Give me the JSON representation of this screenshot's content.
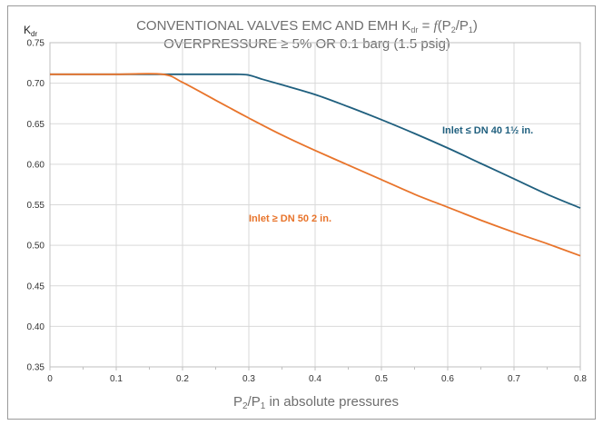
{
  "chart_data": {
    "type": "line",
    "title_line1_parts": [
      "CONVENTIONAL VALVES EMC AND EMH K",
      "dr",
      " = ",
      "f",
      "(P",
      "2",
      "/P",
      "1",
      ")"
    ],
    "title_line2": "OVERPRESSURE ≥ 5% OR 0.1 barg (1.5 psig)",
    "ylabel_main": "K",
    "ylabel_sub": "dr",
    "xlabel_parts": [
      "P",
      "2",
      "/P",
      "1",
      " in absolute pressures"
    ],
    "xlim": [
      0,
      0.8
    ],
    "ylim": [
      0.35,
      0.75
    ],
    "x_ticks": [
      "0",
      "0.1",
      "0.2",
      "0.3",
      "0.4",
      "0.5",
      "0.6",
      "0.7",
      "0.8"
    ],
    "y_ticks": [
      "0.35",
      "0.40",
      "0.45",
      "0.50",
      "0.55",
      "0.60",
      "0.65",
      "0.70",
      "0.75"
    ],
    "grid": true,
    "series": [
      {
        "name": "Inlet ≤ DN 40 1½ in.",
        "color": "#1f5f7e",
        "points": [
          [
            0,
            0.711
          ],
          [
            0.1,
            0.711
          ],
          [
            0.2,
            0.711
          ],
          [
            0.28,
            0.711
          ],
          [
            0.3,
            0.71
          ],
          [
            0.32,
            0.705
          ],
          [
            0.35,
            0.698
          ],
          [
            0.4,
            0.686
          ],
          [
            0.45,
            0.671
          ],
          [
            0.5,
            0.655
          ],
          [
            0.55,
            0.638
          ],
          [
            0.6,
            0.62
          ],
          [
            0.65,
            0.601
          ],
          [
            0.7,
            0.582
          ],
          [
            0.75,
            0.563
          ],
          [
            0.8,
            0.546
          ]
        ]
      },
      {
        "name": "Inlet ≥ DN 50 2 in.",
        "color": "#e8742b",
        "points": [
          [
            0,
            0.711
          ],
          [
            0.1,
            0.711
          ],
          [
            0.17,
            0.711
          ],
          [
            0.2,
            0.701
          ],
          [
            0.25,
            0.679
          ],
          [
            0.3,
            0.657
          ],
          [
            0.35,
            0.636
          ],
          [
            0.4,
            0.617
          ],
          [
            0.45,
            0.599
          ],
          [
            0.5,
            0.581
          ],
          [
            0.55,
            0.563
          ],
          [
            0.6,
            0.547
          ],
          [
            0.65,
            0.531
          ],
          [
            0.7,
            0.516
          ],
          [
            0.75,
            0.502
          ],
          [
            0.8,
            0.487
          ]
        ]
      }
    ],
    "gridline_color": "#d9d9d9",
    "axis_color": "#bfbfbf"
  }
}
